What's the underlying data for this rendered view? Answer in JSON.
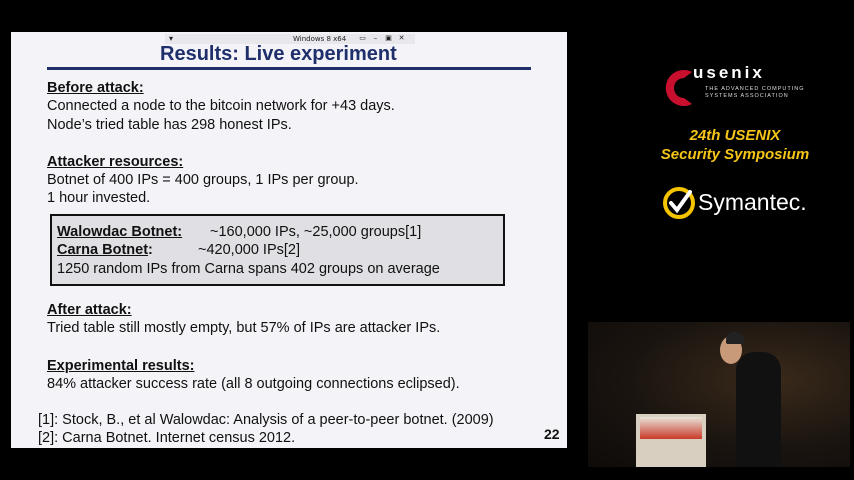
{
  "vm_window": {
    "title": "Windows 8 x64"
  },
  "slide": {
    "title": "Results: Live experiment",
    "before_heading": "Before attack:",
    "before_line1": "Connected a node to the bitcoin network for +43 days.",
    "before_line2": "Node’s tried table has 298 honest IPs.",
    "resources_heading": "Attacker resources:",
    "resources_line1": "Botnet of 400 IPs = 400 groups, 1 IPs per group.",
    "resources_line2": "1 hour invested.",
    "box": {
      "walowdac_label": "Walowdac Botnet:",
      "walowdac_value": "~160,000 IPs, ~25,000 groups[1]",
      "carna_label": "Carna Botnet",
      "carna_colon": ":",
      "carna_value": "~420,000 IPs[2]",
      "random_line": "1250 random IPs from Carna spans 402 groups on average"
    },
    "after_heading": "After attack:",
    "after_line": "Tried table still mostly empty, but 57% of IPs are attacker IPs.",
    "results_heading": "Experimental results:",
    "results_line": "84% attacker success rate (all 8 outgoing connections eclipsed).",
    "ref1": "[1]: Stock, B., et al Walowdac: Analysis of a peer-to-peer botnet. (2009)",
    "ref2": "[2]: Carna Botnet. Internet census 2012.",
    "page_number": "22"
  },
  "sidebar": {
    "usenix_word": "usenix",
    "usenix_tagline": "THE ADVANCED COMPUTING SYSTEMS ASSOCIATION",
    "symposium_line1": "24th USENIX",
    "symposium_line2": "Security Symposium",
    "sponsor": "Symantec.",
    "colors": {
      "usenix_red": "#c8102e",
      "symposium_gold": "#f5c518",
      "symantec_yellow": "#f5c400"
    }
  }
}
